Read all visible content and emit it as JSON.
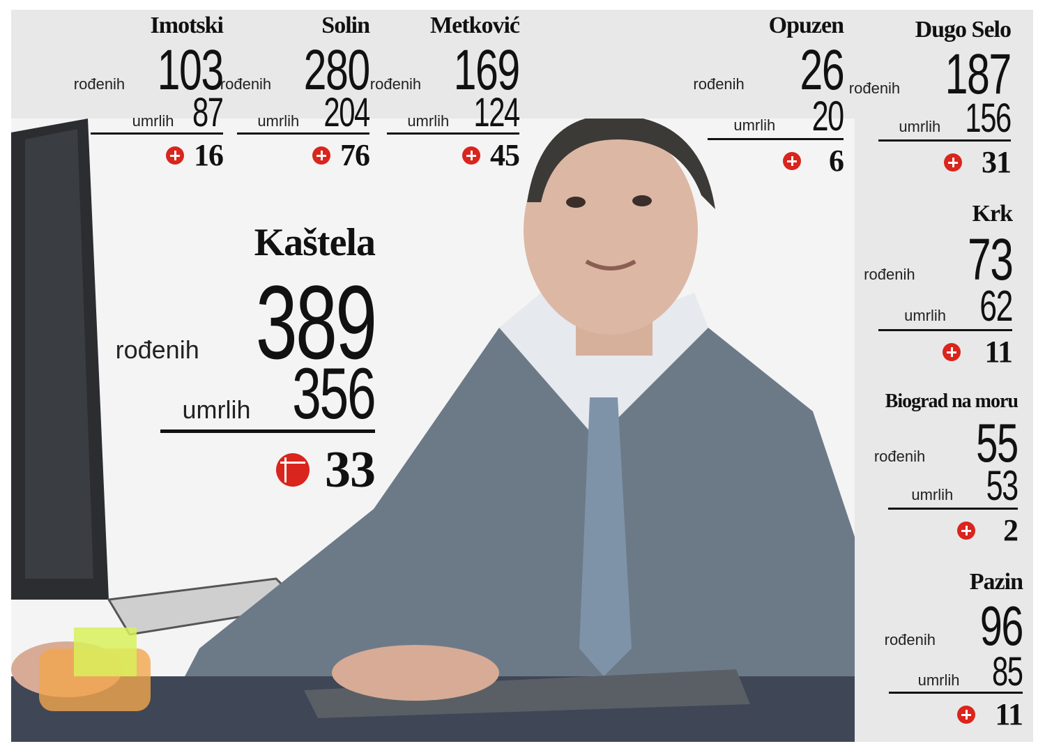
{
  "colors": {
    "accent": "#d9251d",
    "panel": "#e8e8e8"
  },
  "labels": {
    "born": "rođenih",
    "died": "umrlih"
  },
  "towns": {
    "imotski": {
      "name": "Imotski",
      "born": "103",
      "died": "87",
      "diff": "16"
    },
    "solin": {
      "name": "Solin",
      "born": "280",
      "died": "204",
      "diff": "76"
    },
    "metkovic": {
      "name": "Metković",
      "born": "169",
      "died": "124",
      "diff": "45"
    },
    "opuzen": {
      "name": "Opuzen",
      "born": "26",
      "died": "20",
      "diff": "6"
    },
    "dugoselo": {
      "name": "Dugo Selo",
      "born": "187",
      "died": "156",
      "diff": "31"
    },
    "krk": {
      "name": "Krk",
      "born": "73",
      "died": "62",
      "diff": "11"
    },
    "biograd": {
      "name": "Biograd na moru",
      "born": "55",
      "died": "53",
      "diff": "2"
    },
    "pazin": {
      "name": "Pazin",
      "born": "96",
      "died": "85",
      "diff": "11"
    },
    "kastela": {
      "name": "Kaštela",
      "born": "389",
      "died": "356",
      "diff": "33"
    }
  }
}
